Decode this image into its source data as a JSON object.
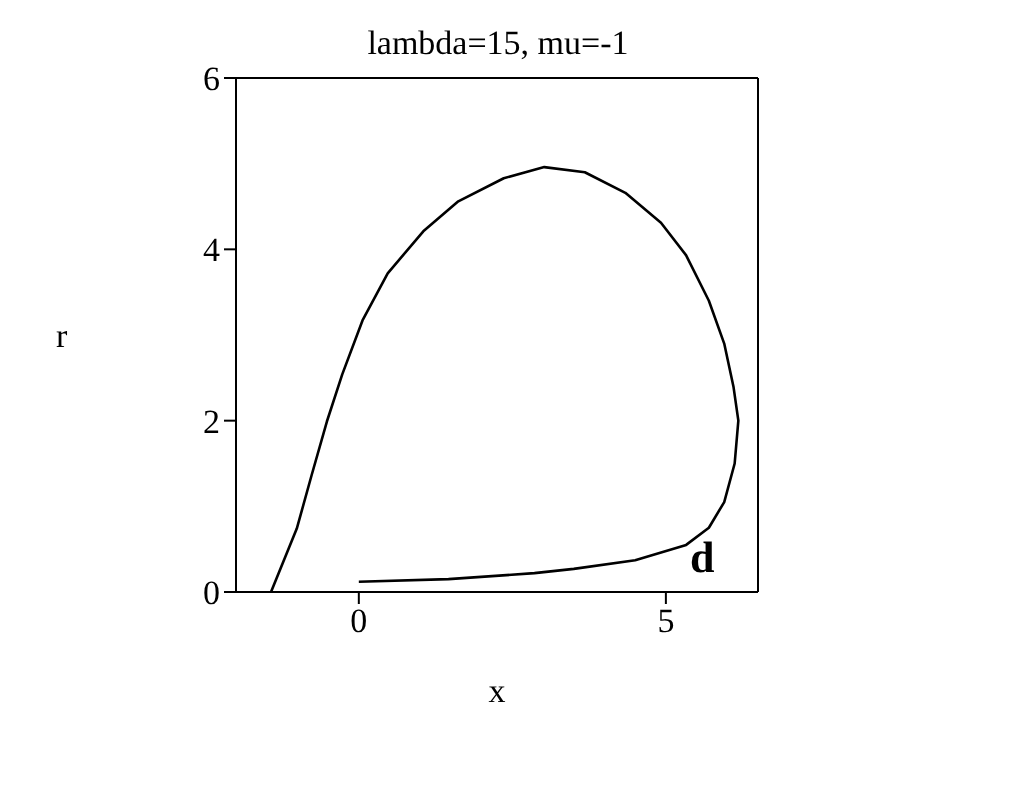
{
  "chart_data": {
    "type": "line",
    "title": "lambda=15, mu=-1",
    "xlabel": "x",
    "ylabel": "r",
    "annotations": [
      "d"
    ],
    "series": [
      {
        "color": "#000000",
        "x": [
          -1.43,
          -1.01,
          -0.77,
          -0.52,
          -0.27,
          0.06,
          0.47,
          1.05,
          1.62,
          2.36,
          3.02,
          3.68,
          4.34,
          4.92,
          5.33,
          5.7,
          5.95,
          6.1,
          6.18,
          6.12,
          5.95,
          5.7,
          5.33,
          4.5,
          3.5,
          2.86,
          1.46,
          0
        ],
        "values": [
          0,
          0.74,
          1.36,
          1.99,
          2.54,
          3.17,
          3.72,
          4.21,
          4.56,
          4.83,
          4.96,
          4.9,
          4.66,
          4.31,
          3.93,
          3.4,
          2.9,
          2.4,
          2,
          1.5,
          1.05,
          0.75,
          0.55,
          0.37,
          0.27,
          0.22,
          0.15,
          0.12
        ]
      }
    ],
    "xlim": [
      -2,
      6.5
    ],
    "xticks": [
      0,
      5
    ],
    "ylim": [
      0,
      6
    ],
    "yticks": [
      0,
      2,
      4,
      6
    ],
    "marker": "none",
    "line_style": "solid"
  }
}
